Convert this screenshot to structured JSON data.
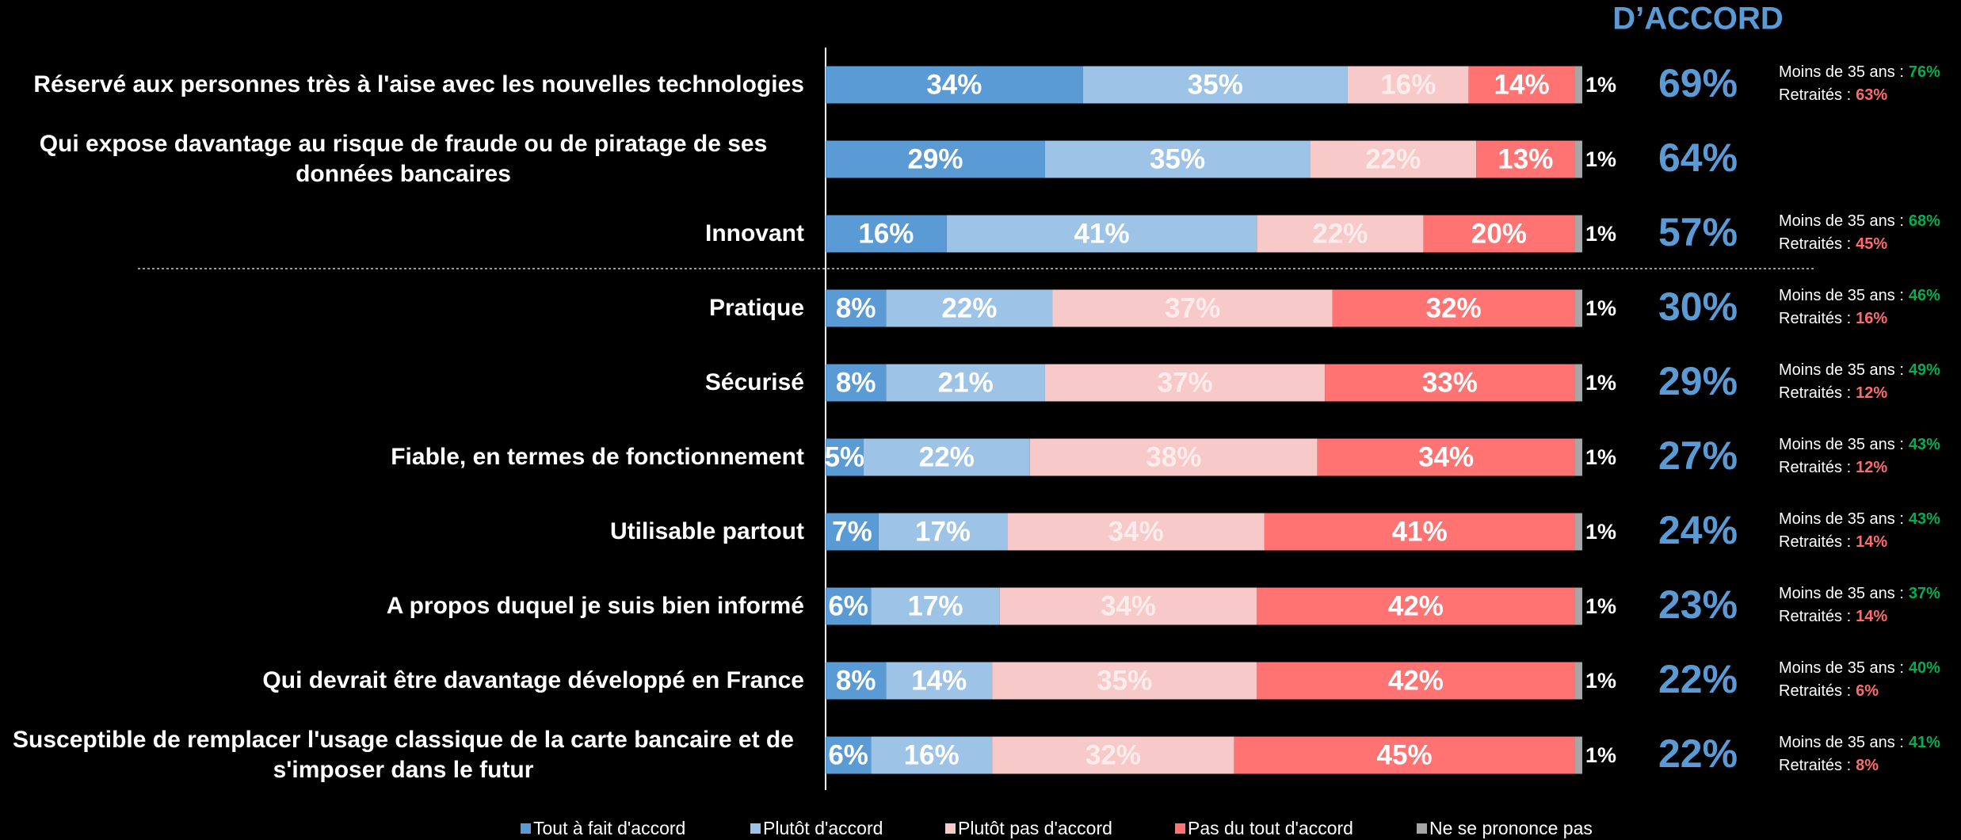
{
  "chart_data": {
    "type": "bar",
    "orientation": "horizontal",
    "stacked": true,
    "xlim": [
      0,
      100
    ],
    "categories": [
      "Réservé aux personnes très à l'aise avec les nouvelles technologies",
      "Qui expose davantage au risque de fraude ou de piratage de ses données bancaires",
      "Innovant",
      "Pratique",
      "Sécurisé",
      "Fiable, en termes de fonctionnement",
      "Utilisable partout",
      "A propos duquel je suis bien informé",
      "Qui devrait être davantage développé en France",
      "Susceptible de remplacer l'usage classique de la carte bancaire et de s'imposer dans le futur"
    ],
    "series": [
      {
        "name": "Tout à fait d'accord",
        "color": "#5b9bd5",
        "values": [
          34,
          29,
          16,
          8,
          8,
          5,
          7,
          6,
          8,
          6
        ],
        "value_labels": [
          "34%",
          "29%",
          "16%",
          "8%",
          "8%",
          "5%",
          "7%",
          "6%",
          "8%",
          "6%"
        ]
      },
      {
        "name": "Plutôt d'accord",
        "color": "#9dc3e6",
        "values": [
          35,
          35,
          41,
          22,
          21,
          22,
          17,
          17,
          14,
          16
        ],
        "value_labels": [
          "35%",
          "35%",
          "41%",
          "22%",
          "21%",
          "22%",
          "17%",
          "17%",
          "14%",
          "16%"
        ]
      },
      {
        "name": "Plutôt pas d'accord",
        "color": "#f8c9c9",
        "values": [
          16,
          22,
          22,
          37,
          37,
          38,
          34,
          34,
          35,
          32
        ],
        "value_labels": [
          "16%",
          "22%",
          "22%",
          "37%",
          "37%",
          "38%",
          "34%",
          "34%",
          "35%",
          "32%"
        ]
      },
      {
        "name": "Pas du tout d'accord",
        "color": "#ff7373",
        "values": [
          14,
          13,
          20,
          32,
          33,
          34,
          41,
          42,
          42,
          45
        ],
        "value_labels": [
          "14%",
          "13%",
          "20%",
          "32%",
          "33%",
          "34%",
          "41%",
          "42%",
          "42%",
          "45%"
        ]
      },
      {
        "name": "Ne se prononce pas",
        "color": "#a6a6a6",
        "values": [
          1,
          1,
          1,
          1,
          1,
          1,
          1,
          1,
          1,
          1
        ],
        "value_labels": [
          "1%",
          "1%",
          "1%",
          "1%",
          "1%",
          "1%",
          "1%",
          "1%",
          "1%",
          "1%"
        ]
      }
    ],
    "totals": {
      "title": "D’ACCORD",
      "color": "#5b9bd5",
      "values": [
        69,
        64,
        57,
        30,
        29,
        27,
        24,
        23,
        22,
        22
      ],
      "value_labels": [
        "69%",
        "64%",
        "57%",
        "30%",
        "29%",
        "27%",
        "24%",
        "23%",
        "22%",
        "22%"
      ]
    },
    "subgroups": [
      {
        "label": "Moins de 35 ans :",
        "color": "#00b050",
        "values": [
          76,
          null,
          68,
          46,
          49,
          43,
          43,
          37,
          40,
          41
        ],
        "value_labels": [
          "76%",
          null,
          "68%",
          "46%",
          "49%",
          "43%",
          "43%",
          "37%",
          "40%",
          "41%"
        ]
      },
      {
        "label": "Retraités :",
        "color": "#ff6b6b",
        "values": [
          63,
          null,
          45,
          16,
          12,
          12,
          14,
          14,
          6,
          8
        ],
        "value_labels": [
          "63%",
          null,
          "45%",
          "16%",
          "12%",
          "12%",
          "14%",
          "14%",
          "6%",
          "8%"
        ]
      }
    ]
  }
}
